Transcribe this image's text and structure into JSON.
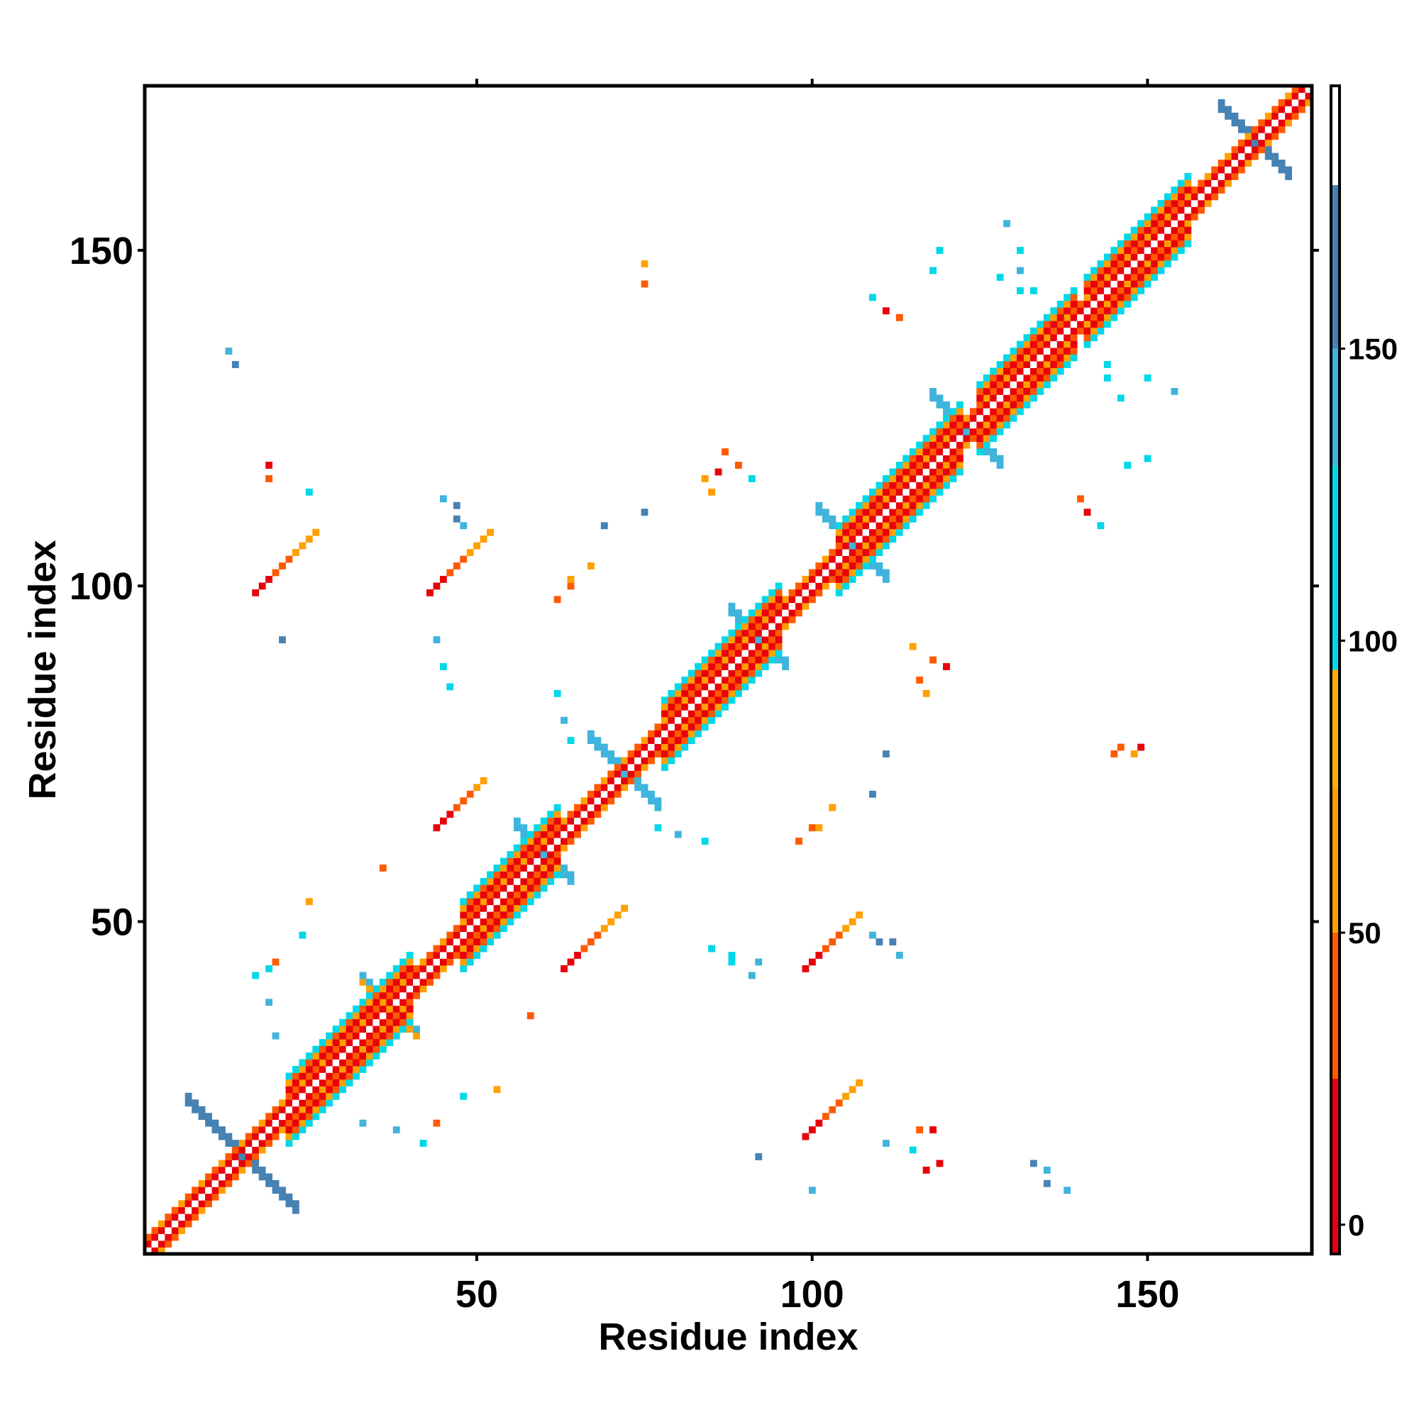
{
  "chart_data": {
    "type": "heatmap",
    "title": "",
    "xlabel": "Residue index",
    "ylabel": "Residue index",
    "xlim": [
      1,
      174
    ],
    "ylim": [
      1,
      174
    ],
    "x_ticks": [
      50,
      100,
      150
    ],
    "y_ticks": [
      50,
      100,
      150
    ],
    "colorbar": {
      "ticks": [
        0,
        50,
        100,
        150
      ],
      "range": [
        -5,
        195
      ],
      "bands": [
        {
          "from": -5,
          "to": 25,
          "color": "#e8000a"
        },
        {
          "from": 25,
          "to": 50,
          "color": "#ff5a00"
        },
        {
          "from": 50,
          "to": 75,
          "color": "#ffa000"
        },
        {
          "from": 75,
          "to": 95,
          "color": "#ffb000"
        },
        {
          "from": 95,
          "to": 130,
          "color": "#00d8e8"
        },
        {
          "from": 130,
          "to": 150,
          "color": "#3fb4dc"
        },
        {
          "from": 150,
          "to": 178,
          "color": "#4682b4"
        },
        {
          "from": 178,
          "to": 195,
          "color": "#ffffff"
        }
      ]
    },
    "value_scale": {
      "low": 0,
      "high": 150,
      "note_colors": [
        "#ffffff",
        "#e8000a",
        "#ff5a00",
        "#ffa000",
        "#00d8e8",
        "#3fb4dc",
        "#4682b4"
      ]
    },
    "diagonal": {
      "start": 1,
      "end": 174,
      "half_width": 2
    },
    "helix_bands": [
      {
        "start": 22,
        "end": 40
      },
      {
        "start": 48,
        "end": 62
      },
      {
        "start": 78,
        "end": 95
      },
      {
        "start": 104,
        "end": 122
      },
      {
        "start": 125,
        "end": 139
      },
      {
        "start": 141,
        "end": 156
      }
    ],
    "cross_markers": [
      {
        "x": 15,
        "y": 15,
        "size": 8,
        "color": "#4682b4"
      },
      {
        "x": 72,
        "y": 72,
        "size": 5,
        "color": "#3fb4dc"
      },
      {
        "x": 106,
        "y": 106,
        "size": 5,
        "color": "#00d8e8"
      },
      {
        "x": 123,
        "y": 123,
        "size": 5,
        "color": "#3fb4dc"
      },
      {
        "x": 166,
        "y": 166,
        "size": 5,
        "color": "#4682b4"
      },
      {
        "x": 92,
        "y": 92,
        "size": 4,
        "color": "#3fb4dc"
      },
      {
        "x": 60,
        "y": 60,
        "size": 4,
        "color": "#3fb4dc"
      },
      {
        "x": 37,
        "y": 37,
        "size": 4,
        "color": "#ffa000"
      }
    ],
    "contact_patches": [
      {
        "x": 20,
        "y": 101,
        "dx": 6,
        "dy": 5,
        "color": "#e8000a"
      },
      {
        "x": 46,
        "y": 101,
        "dx": 6,
        "dy": 5,
        "color": "#e8000a"
      },
      {
        "x": 46,
        "y": 66,
        "dx": 5,
        "dy": 4,
        "color": "#e8000a"
      },
      {
        "x": 66,
        "y": 45,
        "dx": 6,
        "dy": 5,
        "color": "#ff5a00"
      },
      {
        "x": 101,
        "y": 45,
        "dx": 5,
        "dy": 5,
        "color": "#e8000a"
      },
      {
        "x": 101,
        "y": 20,
        "dx": 5,
        "dy": 5,
        "color": "#e8000a"
      }
    ],
    "scattered_cells": [
      {
        "x": 89,
        "y": 118,
        "value": 30
      },
      {
        "x": 86,
        "y": 117,
        "value": 10
      },
      {
        "x": 84,
        "y": 116,
        "value": 60
      },
      {
        "x": 91,
        "y": 116,
        "value": 100
      },
      {
        "x": 87,
        "y": 120,
        "value": 40
      },
      {
        "x": 85,
        "y": 114,
        "value": 50
      },
      {
        "x": 118,
        "y": 89,
        "value": 30
      },
      {
        "x": 116,
        "y": 86,
        "value": 40
      },
      {
        "x": 120,
        "y": 88,
        "value": 10
      },
      {
        "x": 117,
        "y": 84,
        "value": 60
      },
      {
        "x": 115,
        "y": 91,
        "value": 50
      },
      {
        "x": 111,
        "y": 141,
        "value": 20
      },
      {
        "x": 113,
        "y": 140,
        "value": 40
      },
      {
        "x": 109,
        "y": 143,
        "value": 100
      },
      {
        "x": 141,
        "y": 111,
        "value": 20
      },
      {
        "x": 140,
        "y": 113,
        "value": 40
      },
      {
        "x": 143,
        "y": 109,
        "value": 100
      },
      {
        "x": 75,
        "y": 145,
        "value": 40
      },
      {
        "x": 75,
        "y": 148,
        "value": 60
      },
      {
        "x": 145,
        "y": 75,
        "value": 40
      },
      {
        "x": 148,
        "y": 75,
        "value": 60
      },
      {
        "x": 19,
        "y": 118,
        "value": 10
      },
      {
        "x": 19,
        "y": 116,
        "value": 40
      },
      {
        "x": 13,
        "y": 135,
        "value": 140
      },
      {
        "x": 14,
        "y": 133,
        "value": 150
      },
      {
        "x": 25,
        "y": 114,
        "value": 100
      },
      {
        "x": 21,
        "y": 92,
        "value": 160
      },
      {
        "x": 118,
        "y": 19,
        "value": 10
      },
      {
        "x": 116,
        "y": 19,
        "value": 40
      },
      {
        "x": 135,
        "y": 13,
        "value": 140
      },
      {
        "x": 133,
        "y": 14,
        "value": 150
      },
      {
        "x": 45,
        "y": 113,
        "value": 140
      },
      {
        "x": 47,
        "y": 110,
        "value": 160
      },
      {
        "x": 113,
        "y": 45,
        "value": 140
      },
      {
        "x": 110,
        "y": 47,
        "value": 160
      },
      {
        "x": 64,
        "y": 100,
        "value": 40
      },
      {
        "x": 67,
        "y": 103,
        "value": 50
      },
      {
        "x": 100,
        "y": 64,
        "value": 40
      },
      {
        "x": 103,
        "y": 67,
        "value": 50
      },
      {
        "x": 75,
        "y": 111,
        "value": 160
      },
      {
        "x": 111,
        "y": 75,
        "value": 160
      },
      {
        "x": 44,
        "y": 92,
        "value": 140
      },
      {
        "x": 45,
        "y": 88,
        "value": 100
      },
      {
        "x": 46,
        "y": 85,
        "value": 100
      },
      {
        "x": 92,
        "y": 44,
        "value": 140
      },
      {
        "x": 88,
        "y": 45,
        "value": 100
      },
      {
        "x": 85,
        "y": 46,
        "value": 100
      },
      {
        "x": 36,
        "y": 58,
        "value": 40
      },
      {
        "x": 58,
        "y": 36,
        "value": 40
      },
      {
        "x": 25,
        "y": 53,
        "value": 50
      },
      {
        "x": 24,
        "y": 48,
        "value": 100
      },
      {
        "x": 20,
        "y": 44,
        "value": 40
      },
      {
        "x": 19,
        "y": 43,
        "value": 100
      },
      {
        "x": 53,
        "y": 25,
        "value": 50
      },
      {
        "x": 48,
        "y": 24,
        "value": 100
      },
      {
        "x": 44,
        "y": 20,
        "value": 40
      },
      {
        "x": 19,
        "y": 38,
        "value": 140
      },
      {
        "x": 38,
        "y": 19,
        "value": 140
      },
      {
        "x": 33,
        "y": 20,
        "value": 140
      },
      {
        "x": 20,
        "y": 33,
        "value": 140
      },
      {
        "x": 42,
        "y": 17,
        "value": 100
      },
      {
        "x": 17,
        "y": 42,
        "value": 100
      },
      {
        "x": 77,
        "y": 64,
        "value": 100
      },
      {
        "x": 80,
        "y": 63,
        "value": 140
      },
      {
        "x": 84,
        "y": 62,
        "value": 100
      },
      {
        "x": 64,
        "y": 77,
        "value": 100
      },
      {
        "x": 63,
        "y": 80,
        "value": 140
      },
      {
        "x": 62,
        "y": 84,
        "value": 100
      },
      {
        "x": 98,
        "y": 62,
        "value": 40
      },
      {
        "x": 101,
        "y": 64,
        "value": 50
      },
      {
        "x": 62,
        "y": 98,
        "value": 40
      },
      {
        "x": 64,
        "y": 101,
        "value": 50
      },
      {
        "x": 109,
        "y": 69,
        "value": 160
      },
      {
        "x": 69,
        "y": 109,
        "value": 160
      },
      {
        "x": 88,
        "y": 44,
        "value": 100
      },
      {
        "x": 91,
        "y": 42,
        "value": 140
      },
      {
        "x": 109,
        "y": 48,
        "value": 140
      },
      {
        "x": 112,
        "y": 47,
        "value": 160
      },
      {
        "x": 48,
        "y": 109,
        "value": 140
      },
      {
        "x": 47,
        "y": 112,
        "value": 160
      },
      {
        "x": 117,
        "y": 13,
        "value": 20
      },
      {
        "x": 119,
        "y": 14,
        "value": 10
      },
      {
        "x": 135,
        "y": 11,
        "value": 160
      },
      {
        "x": 138,
        "y": 10,
        "value": 140
      },
      {
        "x": 100,
        "y": 10,
        "value": 140
      },
      {
        "x": 92,
        "y": 15,
        "value": 160
      },
      {
        "x": 111,
        "y": 17,
        "value": 140
      },
      {
        "x": 115,
        "y": 16,
        "value": 100
      },
      {
        "x": 146,
        "y": 76,
        "value": 40
      },
      {
        "x": 149,
        "y": 76,
        "value": 20
      },
      {
        "x": 144,
        "y": 133,
        "value": 100
      },
      {
        "x": 150,
        "y": 131,
        "value": 100
      },
      {
        "x": 154,
        "y": 129,
        "value": 140
      },
      {
        "x": 133,
        "y": 144,
        "value": 100
      },
      {
        "x": 131,
        "y": 150,
        "value": 100
      },
      {
        "x": 129,
        "y": 154,
        "value": 140
      },
      {
        "x": 147,
        "y": 118,
        "value": 100
      },
      {
        "x": 150,
        "y": 119,
        "value": 100
      },
      {
        "x": 118,
        "y": 147,
        "value": 100
      },
      {
        "x": 119,
        "y": 150,
        "value": 100
      },
      {
        "x": 128,
        "y": 146,
        "value": 100
      },
      {
        "x": 131,
        "y": 144,
        "value": 100
      },
      {
        "x": 131,
        "y": 147,
        "value": 140
      },
      {
        "x": 146,
        "y": 128,
        "value": 100
      },
      {
        "x": 144,
        "y": 131,
        "value": 100
      }
    ]
  }
}
